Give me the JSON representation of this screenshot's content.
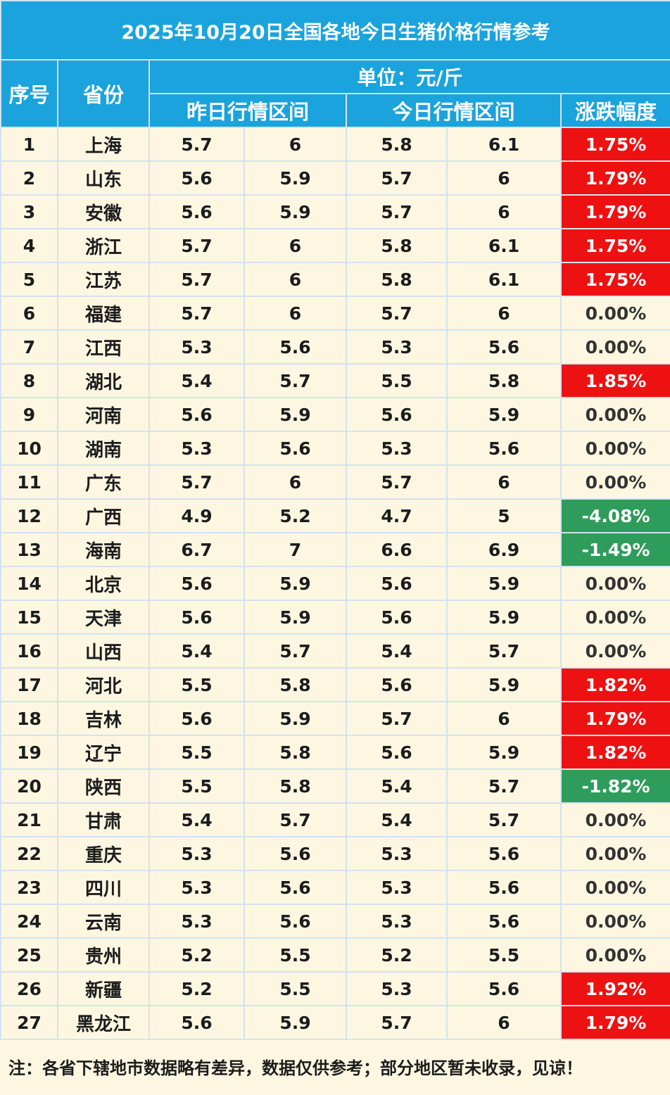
{
  "title": "2025年10月20日全国各地今日生猪价格行情参考",
  "headers": {
    "index": "序号",
    "province": "省份",
    "unit": "单位：元/斤",
    "yesterday": "昨日行情区间",
    "today": "今日行情区间",
    "change": "涨跌幅度"
  },
  "colors": {
    "header_bg": "#1aa3dc",
    "row_bg": "#fdf7e2",
    "rise_bg": "#ee1111",
    "fall_bg": "#2e9c5a",
    "grid_line": "#d3e2ee"
  },
  "rows": [
    {
      "no": "1",
      "province": "上海",
      "y_low": "5.7",
      "y_high": "6",
      "t_low": "5.8",
      "t_high": "6.1",
      "change": "1.75%",
      "trend": "up"
    },
    {
      "no": "2",
      "province": "山东",
      "y_low": "5.6",
      "y_high": "5.9",
      "t_low": "5.7",
      "t_high": "6",
      "change": "1.79%",
      "trend": "up"
    },
    {
      "no": "3",
      "province": "安徽",
      "y_low": "5.6",
      "y_high": "5.9",
      "t_low": "5.7",
      "t_high": "6",
      "change": "1.79%",
      "trend": "up"
    },
    {
      "no": "4",
      "province": "浙江",
      "y_low": "5.7",
      "y_high": "6",
      "t_low": "5.8",
      "t_high": "6.1",
      "change": "1.75%",
      "trend": "up"
    },
    {
      "no": "5",
      "province": "江苏",
      "y_low": "5.7",
      "y_high": "6",
      "t_low": "5.8",
      "t_high": "6.1",
      "change": "1.75%",
      "trend": "up"
    },
    {
      "no": "6",
      "province": "福建",
      "y_low": "5.7",
      "y_high": "6",
      "t_low": "5.7",
      "t_high": "6",
      "change": "0.00%",
      "trend": "flat"
    },
    {
      "no": "7",
      "province": "江西",
      "y_low": "5.3",
      "y_high": "5.6",
      "t_low": "5.3",
      "t_high": "5.6",
      "change": "0.00%",
      "trend": "flat"
    },
    {
      "no": "8",
      "province": "湖北",
      "y_low": "5.4",
      "y_high": "5.7",
      "t_low": "5.5",
      "t_high": "5.8",
      "change": "1.85%",
      "trend": "up"
    },
    {
      "no": "9",
      "province": "河南",
      "y_low": "5.6",
      "y_high": "5.9",
      "t_low": "5.6",
      "t_high": "5.9",
      "change": "0.00%",
      "trend": "flat"
    },
    {
      "no": "10",
      "province": "湖南",
      "y_low": "5.3",
      "y_high": "5.6",
      "t_low": "5.3",
      "t_high": "5.6",
      "change": "0.00%",
      "trend": "flat"
    },
    {
      "no": "11",
      "province": "广东",
      "y_low": "5.7",
      "y_high": "6",
      "t_low": "5.7",
      "t_high": "6",
      "change": "0.00%",
      "trend": "flat"
    },
    {
      "no": "12",
      "province": "广西",
      "y_low": "4.9",
      "y_high": "5.2",
      "t_low": "4.7",
      "t_high": "5",
      "change": "-4.08%",
      "trend": "down"
    },
    {
      "no": "13",
      "province": "海南",
      "y_low": "6.7",
      "y_high": "7",
      "t_low": "6.6",
      "t_high": "6.9",
      "change": "-1.49%",
      "trend": "down"
    },
    {
      "no": "14",
      "province": "北京",
      "y_low": "5.6",
      "y_high": "5.9",
      "t_low": "5.6",
      "t_high": "5.9",
      "change": "0.00%",
      "trend": "flat"
    },
    {
      "no": "15",
      "province": "天津",
      "y_low": "5.6",
      "y_high": "5.9",
      "t_low": "5.6",
      "t_high": "5.9",
      "change": "0.00%",
      "trend": "flat"
    },
    {
      "no": "16",
      "province": "山西",
      "y_low": "5.4",
      "y_high": "5.7",
      "t_low": "5.4",
      "t_high": "5.7",
      "change": "0.00%",
      "trend": "flat"
    },
    {
      "no": "17",
      "province": "河北",
      "y_low": "5.5",
      "y_high": "5.8",
      "t_low": "5.6",
      "t_high": "5.9",
      "change": "1.82%",
      "trend": "up"
    },
    {
      "no": "18",
      "province": "吉林",
      "y_low": "5.6",
      "y_high": "5.9",
      "t_low": "5.7",
      "t_high": "6",
      "change": "1.79%",
      "trend": "up"
    },
    {
      "no": "19",
      "province": "辽宁",
      "y_low": "5.5",
      "y_high": "5.8",
      "t_low": "5.6",
      "t_high": "5.9",
      "change": "1.82%",
      "trend": "up"
    },
    {
      "no": "20",
      "province": "陕西",
      "y_low": "5.5",
      "y_high": "5.8",
      "t_low": "5.4",
      "t_high": "5.7",
      "change": "-1.82%",
      "trend": "down"
    },
    {
      "no": "21",
      "province": "甘肃",
      "y_low": "5.4",
      "y_high": "5.7",
      "t_low": "5.4",
      "t_high": "5.7",
      "change": "0.00%",
      "trend": "flat"
    },
    {
      "no": "22",
      "province": "重庆",
      "y_low": "5.3",
      "y_high": "5.6",
      "t_low": "5.3",
      "t_high": "5.6",
      "change": "0.00%",
      "trend": "flat"
    },
    {
      "no": "23",
      "province": "四川",
      "y_low": "5.3",
      "y_high": "5.6",
      "t_low": "5.3",
      "t_high": "5.6",
      "change": "0.00%",
      "trend": "flat"
    },
    {
      "no": "24",
      "province": "云南",
      "y_low": "5.3",
      "y_high": "5.6",
      "t_low": "5.3",
      "t_high": "5.6",
      "change": "0.00%",
      "trend": "flat"
    },
    {
      "no": "25",
      "province": "贵州",
      "y_low": "5.2",
      "y_high": "5.5",
      "t_low": "5.2",
      "t_high": "5.5",
      "change": "0.00%",
      "trend": "flat"
    },
    {
      "no": "26",
      "province": "新疆",
      "y_low": "5.2",
      "y_high": "5.5",
      "t_low": "5.3",
      "t_high": "5.6",
      "change": "1.92%",
      "trend": "up"
    },
    {
      "no": "27",
      "province": "黑龙江",
      "y_low": "5.6",
      "y_high": "5.9",
      "t_low": "5.7",
      "t_high": "6",
      "change": "1.79%",
      "trend": "up"
    }
  ],
  "note": "注：各省下辖地市数据略有差异，数据仅供参考；部分地区暂未收录，见谅！"
}
